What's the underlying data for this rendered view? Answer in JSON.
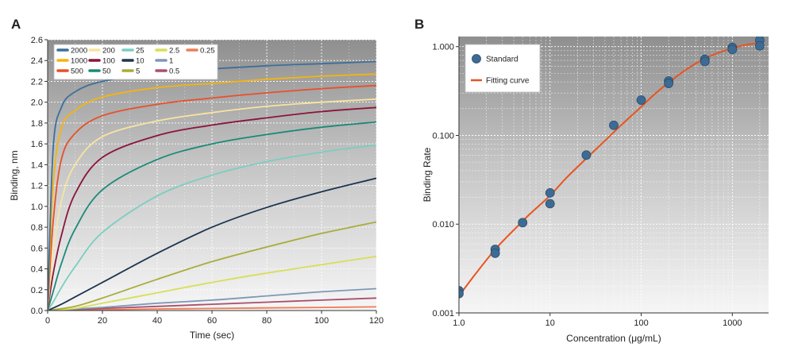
{
  "chart_data": [
    {
      "type": "line",
      "panel_label": "A",
      "title": "",
      "xlabel": "Time (sec)",
      "ylabel": "Binding, nm",
      "xlim": [
        0,
        120
      ],
      "ylim": [
        0,
        2.6
      ],
      "xticks": [
        "0",
        "20",
        "40",
        "60",
        "80",
        "100",
        "120"
      ],
      "yticks": [
        "0.0",
        "0.2",
        "0.4",
        "0.6",
        "0.8",
        "1.0",
        "1.2",
        "1.4",
        "1.6",
        "1.8",
        "2.0",
        "2.2",
        "2.4",
        "2.6"
      ],
      "grid": true,
      "legend_position": "top-left",
      "series": [
        {
          "name": "2000",
          "color": "#3d6f99",
          "x": [
            0,
            2,
            5,
            10,
            20,
            40,
            60,
            80,
            100,
            120
          ],
          "y": [
            0,
            1.55,
            1.95,
            2.1,
            2.2,
            2.28,
            2.32,
            2.35,
            2.37,
            2.39
          ]
        },
        {
          "name": "1000",
          "color": "#f5b40f",
          "x": [
            0,
            2,
            5,
            10,
            20,
            40,
            60,
            80,
            100,
            120
          ],
          "y": [
            0,
            1.2,
            1.75,
            1.92,
            2.05,
            2.14,
            2.18,
            2.22,
            2.25,
            2.27
          ]
        },
        {
          "name": "500",
          "color": "#e8502a",
          "x": [
            0,
            2,
            5,
            10,
            20,
            40,
            60,
            80,
            100,
            120
          ],
          "y": [
            0,
            0.85,
            1.45,
            1.7,
            1.87,
            1.98,
            2.04,
            2.09,
            2.13,
            2.16
          ]
        },
        {
          "name": "200",
          "color": "#f8e4a0",
          "x": [
            0,
            2,
            5,
            10,
            20,
            40,
            60,
            80,
            100,
            120
          ],
          "y": [
            0,
            0.55,
            1.05,
            1.4,
            1.67,
            1.82,
            1.9,
            1.96,
            2.0,
            2.03
          ]
        },
        {
          "name": "100",
          "color": "#8b1538",
          "x": [
            0,
            2,
            5,
            10,
            20,
            40,
            60,
            80,
            100,
            120
          ],
          "y": [
            0,
            0.35,
            0.72,
            1.12,
            1.47,
            1.68,
            1.78,
            1.85,
            1.91,
            1.95
          ]
        },
        {
          "name": "50",
          "color": "#1a8a78",
          "x": [
            0,
            2,
            5,
            10,
            20,
            40,
            60,
            80,
            100,
            120
          ],
          "y": [
            0,
            0.18,
            0.45,
            0.78,
            1.16,
            1.45,
            1.6,
            1.69,
            1.76,
            1.81
          ]
        },
        {
          "name": "25",
          "color": "#7ccdbf",
          "x": [
            0,
            2,
            5,
            10,
            20,
            40,
            60,
            80,
            100,
            120
          ],
          "y": [
            0,
            0.08,
            0.22,
            0.42,
            0.75,
            1.1,
            1.3,
            1.43,
            1.52,
            1.59
          ]
        },
        {
          "name": "10",
          "color": "#1d3550",
          "x": [
            0,
            5,
            10,
            20,
            40,
            60,
            80,
            100,
            120
          ],
          "y": [
            0,
            0.06,
            0.13,
            0.27,
            0.55,
            0.8,
            0.99,
            1.14,
            1.27
          ]
        },
        {
          "name": "5",
          "color": "#a8ac3a",
          "x": [
            0,
            10,
            20,
            40,
            60,
            80,
            100,
            120
          ],
          "y": [
            0,
            0.04,
            0.12,
            0.3,
            0.47,
            0.61,
            0.74,
            0.85
          ]
        },
        {
          "name": "2.5",
          "color": "#d8de5a",
          "x": [
            0,
            10,
            20,
            40,
            60,
            80,
            100,
            120
          ],
          "y": [
            0,
            0.02,
            0.07,
            0.17,
            0.27,
            0.36,
            0.44,
            0.52
          ]
        },
        {
          "name": "1",
          "color": "#7e98b6",
          "x": [
            0,
            20,
            40,
            60,
            80,
            100,
            120
          ],
          "y": [
            0,
            0.03,
            0.07,
            0.1,
            0.14,
            0.18,
            0.21
          ]
        },
        {
          "name": "0.5",
          "color": "#a8506e",
          "x": [
            0,
            20,
            40,
            60,
            80,
            100,
            120
          ],
          "y": [
            0,
            0.02,
            0.04,
            0.06,
            0.08,
            0.1,
            0.12
          ]
        },
        {
          "name": "0.25",
          "color": "#ee7d57",
          "x": [
            0,
            20,
            40,
            60,
            80,
            100,
            120
          ],
          "y": [
            0,
            0.008,
            0.015,
            0.02,
            0.025,
            0.03,
            0.035
          ]
        }
      ]
    },
    {
      "type": "scatter",
      "panel_label": "B",
      "title": "",
      "xlabel": "Concentration (μg/mL)",
      "ylabel": "Binding Rate",
      "xscale": "log",
      "yscale": "log",
      "xlim": [
        1.0,
        2500
      ],
      "ylim": [
        0.001,
        1.3
      ],
      "xticks": [
        {
          "value": 1.0,
          "label": "1.0"
        },
        {
          "value": 10,
          "label": "10"
        },
        {
          "value": 100,
          "label": "100"
        },
        {
          "value": 1000,
          "label": "1000"
        }
      ],
      "yticks": [
        {
          "value": 0.001,
          "label": "0.001"
        },
        {
          "value": 0.01,
          "label": "0.010"
        },
        {
          "value": 0.1,
          "label": "0.100"
        },
        {
          "value": 1.0,
          "label": "1.000"
        }
      ],
      "grid": true,
      "legend_position": "top-left",
      "series": [
        {
          "name": "Standard",
          "color": "#3d6b93",
          "points": [
            [
              1.0,
              0.00178
            ],
            [
              1.0,
              0.00165
            ],
            [
              2.5,
              0.0052
            ],
            [
              2.5,
              0.0047
            ],
            [
              5,
              0.0104
            ],
            [
              10,
              0.0225
            ],
            [
              10,
              0.017
            ],
            [
              25,
              0.06
            ],
            [
              50,
              0.13
            ],
            [
              100,
              0.25
            ],
            [
              200,
              0.41
            ],
            [
              200,
              0.385
            ],
            [
              500,
              0.72
            ],
            [
              500,
              0.68
            ],
            [
              1000,
              0.98
            ],
            [
              1000,
              0.93
            ],
            [
              2000,
              1.18
            ],
            [
              2000,
              1.02
            ]
          ]
        },
        {
          "name": "Fitting curve",
          "color": "#e8541f",
          "x": [
            1.0,
            1.5,
            2.5,
            4,
            6,
            10,
            15,
            25,
            40,
            60,
            100,
            150,
            250,
            400,
            600,
            1000,
            1500,
            2000
          ],
          "y": [
            0.00155,
            0.0027,
            0.0052,
            0.0086,
            0.013,
            0.021,
            0.033,
            0.055,
            0.087,
            0.13,
            0.21,
            0.31,
            0.47,
            0.65,
            0.8,
            0.96,
            1.06,
            1.1
          ]
        }
      ]
    }
  ]
}
